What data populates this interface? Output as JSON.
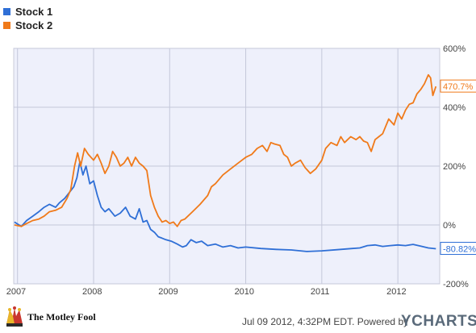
{
  "legend": [
    {
      "name": "Stock 1",
      "color": "#2f6fd6"
    },
    {
      "name": "Stock 2",
      "color": "#f07a1a"
    }
  ],
  "footer": {
    "date_text": "Jul 09 2012, 4:32PM EDT.  Powered by",
    "left_brand": "The Motley Fool",
    "right_brand": "YCHARTS"
  },
  "chart_data": {
    "type": "line",
    "title": "",
    "xlabel": "",
    "ylabel": "",
    "x_ticks": [
      "2007",
      "2008",
      "2009",
      "2010",
      "2011",
      "2012"
    ],
    "x_tick_values": [
      2007.0,
      2008.0,
      2009.0,
      2010.0,
      2011.0,
      2012.0
    ],
    "xlim": [
      2006.95,
      2012.55
    ],
    "y_ticks": [
      "600%",
      "400%",
      "200%",
      "0%",
      "-200%"
    ],
    "y_tick_values": [
      600,
      400,
      200,
      0,
      -200
    ],
    "ylim": [
      -200,
      600
    ],
    "grid": true,
    "legend_position": "top-left",
    "end_labels": [
      "-80.82%",
      "470.7%"
    ],
    "series": [
      {
        "name": "Stock 1",
        "color": "#2f6fd6",
        "end_value": -80.82,
        "points": [
          [
            2006.96,
            10
          ],
          [
            2007.05,
            -5
          ],
          [
            2007.12,
            15
          ],
          [
            2007.2,
            30
          ],
          [
            2007.28,
            45
          ],
          [
            2007.35,
            60
          ],
          [
            2007.42,
            70
          ],
          [
            2007.5,
            60
          ],
          [
            2007.55,
            75
          ],
          [
            2007.62,
            90
          ],
          [
            2007.68,
            110
          ],
          [
            2007.74,
            130
          ],
          [
            2007.78,
            160
          ],
          [
            2007.82,
            215
          ],
          [
            2007.86,
            170
          ],
          [
            2007.9,
            200
          ],
          [
            2007.95,
            140
          ],
          [
            2008.0,
            150
          ],
          [
            2008.05,
            100
          ],
          [
            2008.1,
            60
          ],
          [
            2008.15,
            45
          ],
          [
            2008.2,
            55
          ],
          [
            2008.28,
            30
          ],
          [
            2008.35,
            40
          ],
          [
            2008.42,
            60
          ],
          [
            2008.48,
            30
          ],
          [
            2008.55,
            20
          ],
          [
            2008.6,
            55
          ],
          [
            2008.65,
            10
          ],
          [
            2008.7,
            15
          ],
          [
            2008.75,
            -15
          ],
          [
            2008.8,
            -25
          ],
          [
            2008.85,
            -40
          ],
          [
            2008.9,
            -45
          ],
          [
            2008.95,
            -50
          ],
          [
            2009.02,
            -55
          ],
          [
            2009.1,
            -65
          ],
          [
            2009.17,
            -75
          ],
          [
            2009.22,
            -70
          ],
          [
            2009.28,
            -50
          ],
          [
            2009.35,
            -60
          ],
          [
            2009.42,
            -55
          ],
          [
            2009.5,
            -70
          ],
          [
            2009.6,
            -65
          ],
          [
            2009.7,
            -75
          ],
          [
            2009.8,
            -70
          ],
          [
            2009.9,
            -78
          ],
          [
            2010.0,
            -75
          ],
          [
            2010.2,
            -80
          ],
          [
            2010.4,
            -83
          ],
          [
            2010.6,
            -85
          ],
          [
            2010.8,
            -90
          ],
          [
            2011.0,
            -88
          ],
          [
            2011.2,
            -84
          ],
          [
            2011.4,
            -80
          ],
          [
            2011.5,
            -78
          ],
          [
            2011.6,
            -70
          ],
          [
            2011.7,
            -68
          ],
          [
            2011.8,
            -73
          ],
          [
            2011.9,
            -70
          ],
          [
            2012.0,
            -68
          ],
          [
            2012.1,
            -70
          ],
          [
            2012.2,
            -66
          ],
          [
            2012.3,
            -72
          ],
          [
            2012.4,
            -78
          ],
          [
            2012.5,
            -80.82
          ]
        ]
      },
      {
        "name": "Stock 2",
        "color": "#f07a1a",
        "end_value": 470.7,
        "points": [
          [
            2006.96,
            0
          ],
          [
            2007.05,
            -5
          ],
          [
            2007.12,
            5
          ],
          [
            2007.2,
            15
          ],
          [
            2007.28,
            20
          ],
          [
            2007.35,
            30
          ],
          [
            2007.42,
            45
          ],
          [
            2007.5,
            50
          ],
          [
            2007.58,
            60
          ],
          [
            2007.65,
            90
          ],
          [
            2007.7,
            120
          ],
          [
            2007.75,
            200
          ],
          [
            2007.79,
            245
          ],
          [
            2007.83,
            200
          ],
          [
            2007.88,
            260
          ],
          [
            2007.93,
            240
          ],
          [
            2008.0,
            220
          ],
          [
            2008.05,
            240
          ],
          [
            2008.1,
            210
          ],
          [
            2008.15,
            175
          ],
          [
            2008.2,
            200
          ],
          [
            2008.25,
            250
          ],
          [
            2008.3,
            230
          ],
          [
            2008.35,
            200
          ],
          [
            2008.4,
            210
          ],
          [
            2008.45,
            230
          ],
          [
            2008.5,
            200
          ],
          [
            2008.55,
            230
          ],
          [
            2008.6,
            210
          ],
          [
            2008.65,
            200
          ],
          [
            2008.7,
            185
          ],
          [
            2008.75,
            100
          ],
          [
            2008.8,
            60
          ],
          [
            2008.85,
            30
          ],
          [
            2008.9,
            10
          ],
          [
            2008.95,
            15
          ],
          [
            2009.0,
            5
          ],
          [
            2009.05,
            10
          ],
          [
            2009.1,
            -5
          ],
          [
            2009.15,
            15
          ],
          [
            2009.2,
            20
          ],
          [
            2009.3,
            45
          ],
          [
            2009.4,
            70
          ],
          [
            2009.5,
            100
          ],
          [
            2009.55,
            130
          ],
          [
            2009.6,
            140
          ],
          [
            2009.7,
            170
          ],
          [
            2009.8,
            190
          ],
          [
            2009.9,
            210
          ],
          [
            2010.0,
            230
          ],
          [
            2010.08,
            240
          ],
          [
            2010.15,
            260
          ],
          [
            2010.22,
            270
          ],
          [
            2010.28,
            250
          ],
          [
            2010.33,
            280
          ],
          [
            2010.38,
            275
          ],
          [
            2010.45,
            270
          ],
          [
            2010.5,
            240
          ],
          [
            2010.55,
            230
          ],
          [
            2010.6,
            200
          ],
          [
            2010.65,
            210
          ],
          [
            2010.72,
            220
          ],
          [
            2010.78,
            195
          ],
          [
            2010.85,
            175
          ],
          [
            2010.92,
            190
          ],
          [
            2011.0,
            220
          ],
          [
            2011.05,
            260
          ],
          [
            2011.12,
            280
          ],
          [
            2011.2,
            270
          ],
          [
            2011.25,
            300
          ],
          [
            2011.3,
            280
          ],
          [
            2011.38,
            300
          ],
          [
            2011.45,
            290
          ],
          [
            2011.5,
            300
          ],
          [
            2011.55,
            285
          ],
          [
            2011.6,
            280
          ],
          [
            2011.65,
            250
          ],
          [
            2011.7,
            290
          ],
          [
            2011.75,
            300
          ],
          [
            2011.8,
            310
          ],
          [
            2011.88,
            360
          ],
          [
            2011.95,
            340
          ],
          [
            2012.0,
            380
          ],
          [
            2012.05,
            360
          ],
          [
            2012.1,
            390
          ],
          [
            2012.15,
            410
          ],
          [
            2012.2,
            415
          ],
          [
            2012.25,
            445
          ],
          [
            2012.3,
            460
          ],
          [
            2012.35,
            480
          ],
          [
            2012.4,
            510
          ],
          [
            2012.43,
            500
          ],
          [
            2012.46,
            440
          ],
          [
            2012.5,
            470.7
          ]
        ]
      }
    ]
  }
}
